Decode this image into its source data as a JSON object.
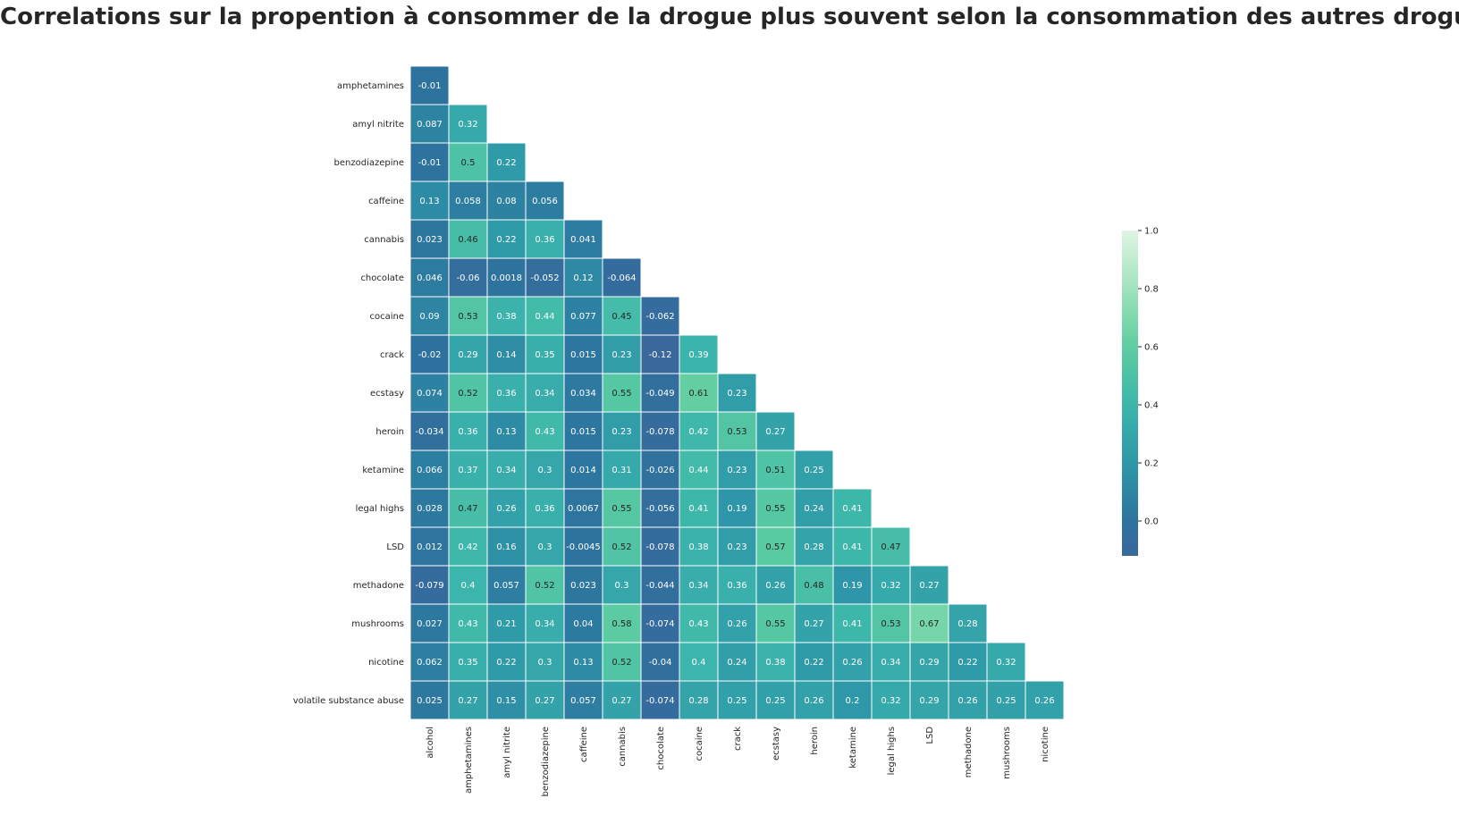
{
  "chart_data": {
    "type": "heatmap",
    "title": "Correlations sur la propention à consommer de la drogue plus souvent selon la consommation des autres drogues",
    "row_labels": [
      "amphetamines",
      "amyl nitrite",
      "benzodiazepine",
      "caffeine",
      "cannabis",
      "chocolate",
      "cocaine",
      "crack",
      "ecstasy",
      "heroin",
      "ketamine",
      "legal highs",
      "LSD",
      "methadone",
      "mushrooms",
      "nicotine",
      "volatile substance abuse"
    ],
    "col_labels": [
      "alcohol",
      "amphetamines",
      "amyl nitrite",
      "benzodiazepine",
      "caffeine",
      "cannabis",
      "chocolate",
      "cocaine",
      "crack",
      "ecstasy",
      "heroin",
      "ketamine",
      "legal highs",
      "LSD",
      "methadone",
      "mushrooms",
      "nicotine"
    ],
    "values": [
      [
        -0.01
      ],
      [
        0.087,
        0.32
      ],
      [
        -0.01,
        0.5,
        0.22
      ],
      [
        0.13,
        0.058,
        0.08,
        0.056
      ],
      [
        0.023,
        0.46,
        0.22,
        0.36,
        0.041
      ],
      [
        0.046,
        -0.06,
        0.0018,
        -0.052,
        0.12,
        -0.064
      ],
      [
        0.09,
        0.53,
        0.38,
        0.44,
        0.077,
        0.45,
        -0.062
      ],
      [
        -0.02,
        0.29,
        0.14,
        0.35,
        0.015,
        0.23,
        -0.12,
        0.39
      ],
      [
        0.074,
        0.52,
        0.36,
        0.34,
        0.034,
        0.55,
        -0.049,
        0.61,
        0.23
      ],
      [
        -0.034,
        0.36,
        0.13,
        0.43,
        0.015,
        0.23,
        -0.078,
        0.42,
        0.53,
        0.27
      ],
      [
        0.066,
        0.37,
        0.34,
        0.3,
        0.014,
        0.31,
        -0.026,
        0.44,
        0.23,
        0.51,
        0.25
      ],
      [
        0.028,
        0.47,
        0.26,
        0.36,
        0.0067,
        0.55,
        -0.056,
        0.41,
        0.19,
        0.55,
        0.24,
        0.41
      ],
      [
        0.012,
        0.42,
        0.16,
        0.3,
        -0.0045,
        0.52,
        -0.078,
        0.38,
        0.23,
        0.57,
        0.28,
        0.41,
        0.47
      ],
      [
        -0.079,
        0.4,
        0.057,
        0.52,
        0.023,
        0.3,
        -0.044,
        0.34,
        0.36,
        0.26,
        0.48,
        0.19,
        0.32,
        0.27
      ],
      [
        0.027,
        0.43,
        0.21,
        0.34,
        0.04,
        0.58,
        -0.074,
        0.43,
        0.26,
        0.55,
        0.27,
        0.41,
        0.53,
        0.67,
        0.28
      ],
      [
        0.062,
        0.35,
        0.22,
        0.3,
        0.13,
        0.52,
        -0.04,
        0.4,
        0.24,
        0.38,
        0.22,
        0.26,
        0.34,
        0.29,
        0.22,
        0.32
      ],
      [
        0.025,
        0.27,
        0.15,
        0.27,
        0.057,
        0.27,
        -0.074,
        0.28,
        0.25,
        0.25,
        0.26,
        0.2,
        0.32,
        0.29,
        0.26,
        0.25,
        0.26
      ]
    ],
    "vmin": -0.12,
    "vmax": 1.0,
    "colormap": "mako-like (blue to teal to pale green)",
    "colorbar_ticks": [
      0.0,
      0.2,
      0.4,
      0.6,
      0.8,
      1.0
    ],
    "colorbar_tick_labels": [
      "0.0",
      "0.2",
      "0.4",
      "0.6",
      "0.8",
      "1.0"
    ],
    "mask": "upper triangle"
  }
}
